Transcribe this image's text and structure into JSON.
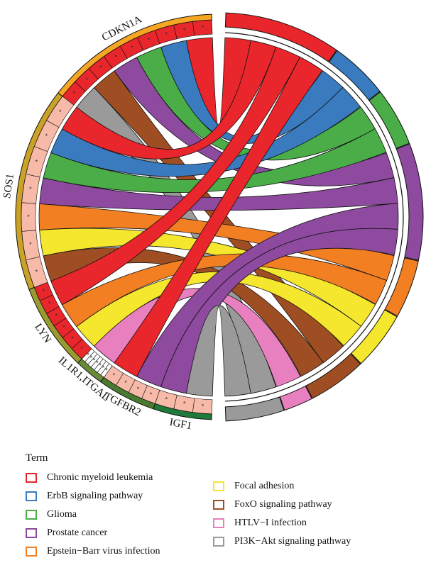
{
  "chart_data": {
    "type": "chord",
    "genes": [
      {
        "name": "CDKN1A",
        "color": "#f5a623",
        "terms": [
          "Chronic myeloid leukemia",
          "ErbB signaling pathway",
          "Glioma",
          "Prostate cancer",
          "FoxO signaling pathway",
          "PI3K−Akt signaling pathway"
        ],
        "fc": [
          2,
          2,
          2,
          2,
          2,
          2,
          2,
          2,
          2
        ]
      },
      {
        "name": "SOS1",
        "color": "#c9a227",
        "terms": [
          "Chronic myeloid leukemia",
          "ErbB signaling pathway",
          "Glioma",
          "Prostate cancer",
          "Epstein−Barr virus infection",
          "Focal adhesion",
          "FoxO signaling pathway"
        ],
        "fc": [
          1,
          1,
          1,
          1,
          1,
          1,
          1
        ]
      },
      {
        "name": "LYN",
        "color": "#9a9a30",
        "terms": [
          "Chronic myeloid leukemia",
          "Epstein−Barr virus infection",
          "Focal adhesion"
        ],
        "fc": [
          2,
          2,
          2,
          2,
          2,
          2
        ]
      },
      {
        "name": "IL1R1,ITGAL",
        "color": "#6a8a3a",
        "terms": [
          "HTLV−I infection"
        ],
        "fc": [
          0,
          0,
          0,
          0,
          0,
          0,
          0
        ]
      },
      {
        "name": "TGFBR2",
        "color": "#4a7a30",
        "terms": [
          "Chronic myeloid leukemia",
          "Prostate cancer"
        ],
        "fc": [
          1,
          1,
          1,
          1
        ]
      },
      {
        "name": "IGF1",
        "color": "#1e7a3a",
        "terms": [
          "Prostate cancer",
          "PI3K−Akt signaling pathway"
        ],
        "fc": [
          1,
          1,
          1
        ]
      }
    ],
    "terms": [
      {
        "name": "Chronic myeloid leukemia",
        "color": "#e8262b"
      },
      {
        "name": "ErbB signaling pathway",
        "color": "#3a7bbf"
      },
      {
        "name": "Glioma",
        "color": "#4aad48"
      },
      {
        "name": "Prostate cancer",
        "color": "#8e4a9e"
      },
      {
        "name": "Epstein−Barr virus infection",
        "color": "#f27f22"
      },
      {
        "name": "Focal adhesion",
        "color": "#f5e62e"
      },
      {
        "name": "FoxO signaling pathway",
        "color": "#9e4e22"
      },
      {
        "name": "HTLV−I infection",
        "color": "#e87fbe"
      },
      {
        "name": "PI3K−Akt signaling pathway",
        "color": "#9a9a9a"
      }
    ]
  },
  "legend": {
    "title": "Term",
    "items": [
      {
        "label": "Chronic myeloid leukemia",
        "color": "#e8262b"
      },
      {
        "label": "ErbB signaling pathway",
        "color": "#3a7bbf"
      },
      {
        "label": "Glioma",
        "color": "#4aad48"
      },
      {
        "label": "Prostate cancer",
        "color": "#8e4a9e"
      },
      {
        "label": "Epstein−Barr virus infection",
        "color": "#f27f22"
      },
      {
        "label": "Focal adhesion",
        "color": "#f5e62e"
      },
      {
        "label": "FoxO signaling pathway",
        "color": "#9e4e22"
      },
      {
        "label": "HTLV−I infection",
        "color": "#e87fbe"
      },
      {
        "label": "PI3K−Akt signaling pathway",
        "color": "#9a9a9a"
      }
    ]
  }
}
